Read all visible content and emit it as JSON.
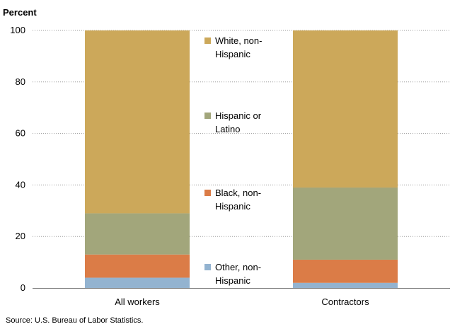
{
  "chart_data": {
    "type": "bar",
    "stacked": true,
    "ylabel": "Percent",
    "ylim": [
      0,
      100
    ],
    "yticks": [
      0,
      20,
      40,
      60,
      80,
      100
    ],
    "grid": "dotted-horizontal",
    "legend_placement": "center",
    "categories": [
      "All workers",
      "Contractors"
    ],
    "series": [
      {
        "name": "Other, non-Hispanic",
        "legend_lines": [
          "Other, non-",
          "Hispanic"
        ],
        "color": "#93b3d0",
        "values": [
          4,
          2
        ]
      },
      {
        "name": "Black, non-Hispanic",
        "legend_lines": [
          "Black, non-",
          "Hispanic"
        ],
        "color": "#db7c47",
        "values": [
          9,
          9
        ]
      },
      {
        "name": "Hispanic or Latino",
        "legend_lines": [
          "Hispanic or",
          "Latino"
        ],
        "color": "#a2a67b",
        "values": [
          16,
          28
        ]
      },
      {
        "name": "White, non-Hispanic",
        "legend_lines": [
          "White, non-",
          "Hispanic"
        ],
        "color": "#cca85a",
        "values": [
          71,
          61
        ]
      }
    ],
    "source": "Source: U.S. Bureau of Labor Statistics."
  }
}
